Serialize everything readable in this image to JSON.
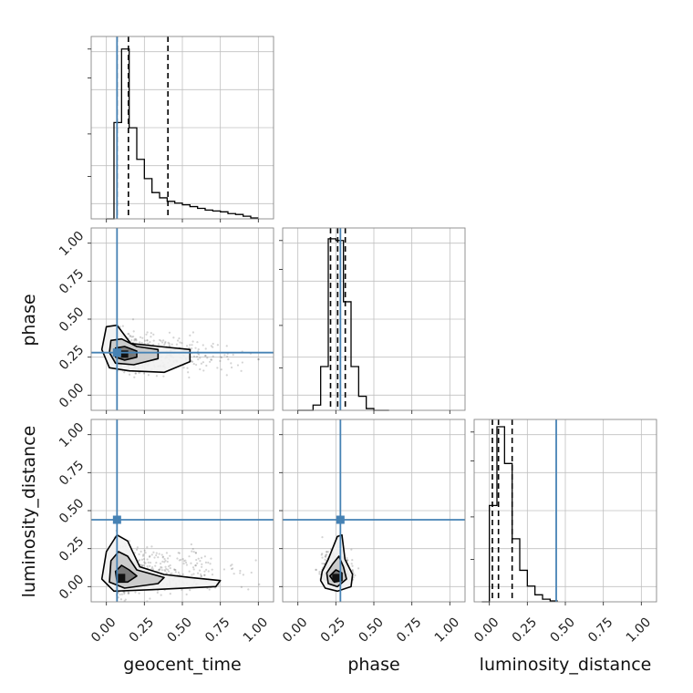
{
  "chart_data": {
    "type": "corner",
    "parameters": [
      "geocent_time",
      "phase",
      "luminosity_distance"
    ],
    "axis_range": [
      -0.1,
      1.1
    ],
    "ticks": [
      0.0,
      0.25,
      0.5,
      0.75,
      1.0
    ],
    "tick_labels": [
      "0.00",
      "0.25",
      "0.50",
      "0.75",
      "1.00"
    ],
    "grid": true,
    "truths": {
      "geocent_time": 0.07,
      "phase": 0.28,
      "luminosity_distance": 0.44
    },
    "quantiles": {
      "geocent_time": [
        0.07,
        0.145,
        0.405
      ],
      "phase": [
        0.215,
        0.262,
        0.312
      ],
      "luminosity_distance": [
        0.02,
        0.06,
        0.15
      ]
    },
    "histograms": {
      "geocent_time": {
        "edges": [
          0.0,
          0.05,
          0.1,
          0.15,
          0.2,
          0.25,
          0.3,
          0.35,
          0.4,
          0.45,
          0.5,
          0.55,
          0.6,
          0.65,
          0.7,
          0.75,
          0.8,
          0.85,
          0.9,
          0.95,
          1.0
        ],
        "values": [
          0.0,
          0.55,
          0.97,
          0.52,
          0.34,
          0.23,
          0.15,
          0.12,
          0.1,
          0.09,
          0.08,
          0.07,
          0.06,
          0.05,
          0.045,
          0.04,
          0.03,
          0.025,
          0.015,
          0.005
        ]
      },
      "phase": {
        "edges": [
          0.0,
          0.05,
          0.1,
          0.15,
          0.2,
          0.25,
          0.3,
          0.35,
          0.4,
          0.45,
          0.5,
          0.55,
          0.6
        ],
        "values": [
          0.0,
          0.0,
          0.03,
          0.25,
          0.98,
          0.97,
          0.62,
          0.25,
          0.08,
          0.01,
          0.0,
          0.0
        ]
      },
      "luminosity_distance": {
        "edges": [
          -0.05,
          0.0,
          0.05,
          0.1,
          0.15,
          0.2,
          0.25,
          0.3,
          0.35,
          0.4,
          0.45
        ],
        "values": [
          0.0,
          0.55,
          1.0,
          0.79,
          0.36,
          0.18,
          0.09,
          0.04,
          0.015,
          0.005
        ]
      }
    },
    "contours": {
      "geocent_time_vs_phase": [
        [
          [
            0.0,
            0.45
          ],
          [
            0.07,
            0.46
          ],
          [
            0.16,
            0.34
          ],
          [
            0.35,
            0.32
          ],
          [
            0.55,
            0.3
          ],
          [
            0.55,
            0.22
          ],
          [
            0.38,
            0.15
          ],
          [
            0.15,
            0.16
          ],
          [
            0.02,
            0.18
          ],
          [
            -0.03,
            0.3
          ]
        ],
        [
          [
            0.03,
            0.36
          ],
          [
            0.1,
            0.37
          ],
          [
            0.2,
            0.32
          ],
          [
            0.34,
            0.3
          ],
          [
            0.34,
            0.24
          ],
          [
            0.18,
            0.2
          ],
          [
            0.06,
            0.21
          ],
          [
            0.02,
            0.28
          ]
        ],
        [
          [
            0.06,
            0.31
          ],
          [
            0.12,
            0.32
          ],
          [
            0.2,
            0.29
          ],
          [
            0.2,
            0.25
          ],
          [
            0.12,
            0.23
          ],
          [
            0.06,
            0.25
          ]
        ]
      ],
      "geocent_time_vs_luminosity_distance": [
        [
          [
            0.0,
            0.23
          ],
          [
            0.07,
            0.34
          ],
          [
            0.14,
            0.3
          ],
          [
            0.22,
            0.13
          ],
          [
            0.38,
            0.08
          ],
          [
            0.55,
            0.06
          ],
          [
            0.75,
            0.04
          ],
          [
            0.72,
            0.0
          ],
          [
            0.3,
            -0.02
          ],
          [
            0.05,
            -0.03
          ],
          [
            -0.03,
            0.05
          ]
        ],
        [
          [
            0.03,
            0.17
          ],
          [
            0.08,
            0.23
          ],
          [
            0.14,
            0.2
          ],
          [
            0.2,
            0.11
          ],
          [
            0.38,
            0.06
          ],
          [
            0.34,
            0.02
          ],
          [
            0.12,
            -0.01
          ],
          [
            0.02,
            0.03
          ]
        ],
        [
          [
            0.06,
            0.1
          ],
          [
            0.1,
            0.14
          ],
          [
            0.15,
            0.11
          ],
          [
            0.2,
            0.07
          ],
          [
            0.14,
            0.03
          ],
          [
            0.07,
            0.03
          ]
        ]
      ],
      "phase_vs_luminosity_distance": [
        [
          [
            0.16,
            0.1
          ],
          [
            0.2,
            0.18
          ],
          [
            0.26,
            0.33
          ],
          [
            0.29,
            0.34
          ],
          [
            0.31,
            0.18
          ],
          [
            0.36,
            0.08
          ],
          [
            0.35,
            0.0
          ],
          [
            0.26,
            -0.03
          ],
          [
            0.18,
            -0.01
          ],
          [
            0.15,
            0.04
          ]
        ],
        [
          [
            0.19,
            0.09
          ],
          [
            0.23,
            0.15
          ],
          [
            0.27,
            0.2
          ],
          [
            0.3,
            0.13
          ],
          [
            0.32,
            0.05
          ],
          [
            0.26,
            0.0
          ],
          [
            0.2,
            0.02
          ]
        ],
        [
          [
            0.21,
            0.07
          ],
          [
            0.25,
            0.11
          ],
          [
            0.29,
            0.09
          ],
          [
            0.29,
            0.04
          ],
          [
            0.24,
            0.03
          ]
        ]
      ]
    },
    "density_peaks": {
      "geocent_time_vs_phase": [
        0.12,
        0.27
      ],
      "geocent_time_vs_luminosity_distance": [
        0.1,
        0.06
      ],
      "phase_vs_luminosity_distance": [
        0.25,
        0.06
      ]
    },
    "colors": {
      "truth": "#4682b4",
      "contour": "#000000",
      "fill": "#888888",
      "grid": "#c0c0c0",
      "frame": "#888888"
    }
  }
}
